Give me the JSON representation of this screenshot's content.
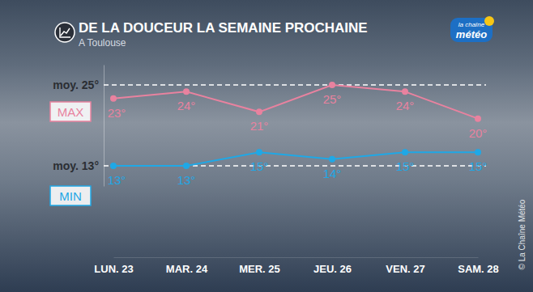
{
  "chart_data": {
    "type": "line",
    "title": "DE LA DOUCEUR LA SEMAINE PROCHAINE",
    "subtitle": "A Toulouse",
    "logo": [
      "la chaîne",
      "météo"
    ],
    "credit": "© La Chaîne Météo",
    "categories": [
      "LUN. 23",
      "MAR. 24",
      "MER. 25",
      "JEU. 26",
      "VEN. 27",
      "SAM. 28"
    ],
    "series": [
      {
        "name": "MAX",
        "color": "#e8829f",
        "marker": "circle",
        "values": [
          23,
          24,
          21,
          25,
          24,
          20
        ],
        "value_labels": [
          "23°",
          "24°",
          "21°",
          "25°",
          "24°",
          "20°"
        ]
      },
      {
        "name": "MIN",
        "color": "#1fa8e6",
        "marker": "circle",
        "values": [
          13,
          13,
          15,
          14,
          15,
          15
        ],
        "value_labels": [
          "13°",
          "13°",
          "15°",
          "14°",
          "15°",
          "15°"
        ]
      }
    ],
    "ylim": [
      10,
      28
    ],
    "yticks": [
      {
        "value": 13,
        "label": "moy. 13°"
      },
      {
        "value": 25,
        "label": "moy. 25°"
      }
    ],
    "grid": true,
    "data_labels": true
  }
}
